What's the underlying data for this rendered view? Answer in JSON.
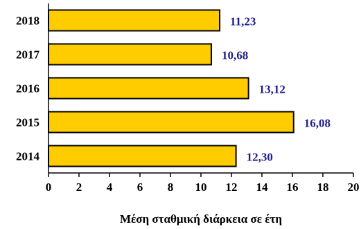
{
  "chart_data": {
    "type": "bar",
    "orientation": "horizontal",
    "categories": [
      "2018",
      "2017",
      "2016",
      "2015",
      "2014"
    ],
    "values": [
      11.23,
      10.68,
      13.12,
      16.08,
      12.3
    ],
    "value_labels": [
      "11,23",
      "10,68",
      "13,12",
      "16,08",
      "12,30"
    ],
    "xticks": [
      "0",
      "2",
      "4",
      "6",
      "8",
      "10",
      "12",
      "14",
      "16",
      "18",
      "20"
    ],
    "xlim": [
      0,
      20
    ],
    "xlabel": "Μέση σταθμική διάρκεια σε έτη",
    "ylabel": "",
    "title": "",
    "grid": false,
    "colors": {
      "bar_fill": "#FFCC00",
      "bar_stroke": "#000000",
      "value_label": "#1F1F8C",
      "text": "#000000"
    }
  }
}
